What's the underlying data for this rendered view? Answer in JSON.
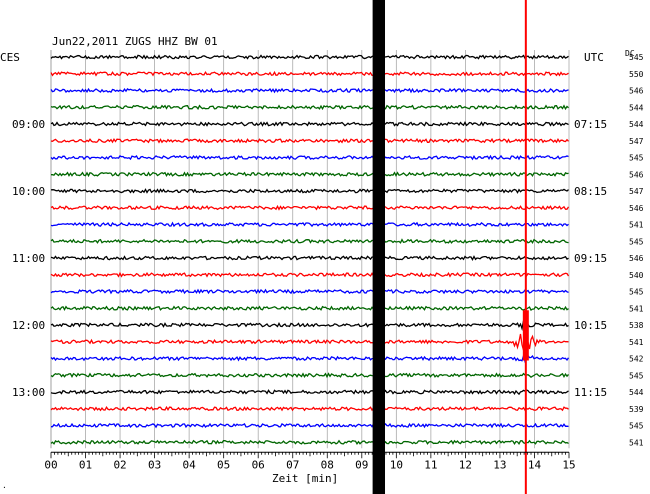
{
  "chart_data": {
    "type": "line",
    "title": "Jun22,2011   ZUGS HHZ BW 01",
    "xlabel": "Zeit [min]",
    "ylabel_left": "CES",
    "ylabel_right": "UTC",
    "dc_label": "DC",
    "xlim": [
      0,
      15
    ],
    "x_ticks": [
      "00",
      "01",
      "02",
      "03",
      "04",
      "05",
      "06",
      "07",
      "08",
      "09",
      "10",
      "11",
      "12",
      "13",
      "14",
      "15"
    ],
    "trace_count": 24,
    "trace_colors": [
      "#000000",
      "#ff0000",
      "#0000ff",
      "#006600"
    ],
    "left_hour_labels": [
      {
        "trace": 4,
        "text": "09:00"
      },
      {
        "trace": 8,
        "text": "10:00"
      },
      {
        "trace": 12,
        "text": "11:00"
      },
      {
        "trace": 16,
        "text": "12:00"
      },
      {
        "trace": 20,
        "text": "13:00"
      }
    ],
    "right_hour_labels": [
      {
        "trace": 4,
        "text": "07:15"
      },
      {
        "trace": 8,
        "text": "08:15"
      },
      {
        "trace": 12,
        "text": "09:15"
      },
      {
        "trace": 16,
        "text": "10:15"
      },
      {
        "trace": 20,
        "text": "11:15"
      }
    ],
    "dc_values": [
      "545",
      "550",
      "546",
      "544",
      "544",
      "547",
      "545",
      "546",
      "547",
      "546",
      "541",
      "545",
      "546",
      "540",
      "545",
      "541",
      "538",
      "541",
      "542",
      "545",
      "544",
      "539",
      "545",
      "541"
    ],
    "events": [
      {
        "name": "saturated-black-band",
        "x_min": 9.4,
        "color": "#000000"
      },
      {
        "name": "red-event",
        "x_min": 13.75,
        "color": "#ff0000",
        "peak_trace": 17
      }
    ],
    "grid": true
  }
}
